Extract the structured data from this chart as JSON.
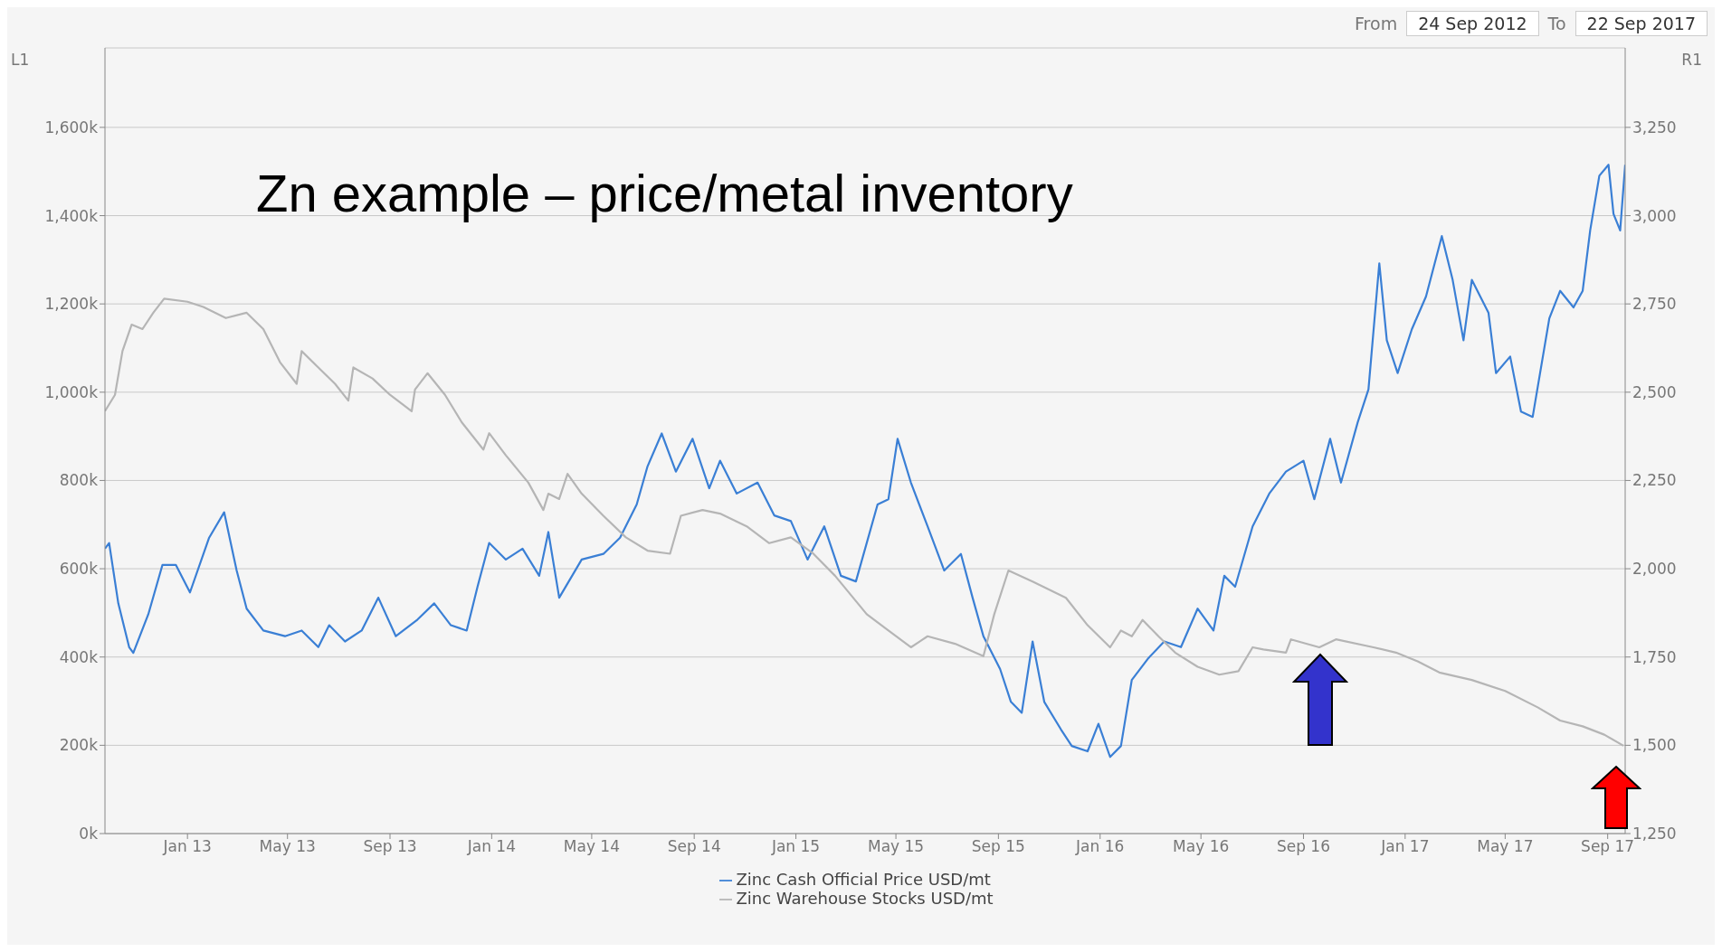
{
  "chart_data": {
    "type": "line",
    "title": "Zn example – price/metal inventory",
    "ylabel": "L1",
    "y2label": "R1",
    "annotations": [
      "From",
      "24 Sep 2012",
      "To",
      "22 Sep 2017"
    ],
    "xlim": [
      "2012-09-24",
      "2017-09-22"
    ],
    "xticks": [
      {
        "value": "2013-01-01",
        "label": "Jan 13"
      },
      {
        "value": "2013-05-01",
        "label": "May 13"
      },
      {
        "value": "2013-09-01",
        "label": "Sep 13"
      },
      {
        "value": "2014-01-01",
        "label": "Jan 14"
      },
      {
        "value": "2014-05-01",
        "label": "May 14"
      },
      {
        "value": "2014-09-01",
        "label": "Sep 14"
      },
      {
        "value": "2015-01-01",
        "label": "Jan 15"
      },
      {
        "value": "2015-05-01",
        "label": "May 15"
      },
      {
        "value": "2015-09-01",
        "label": "Sep 15"
      },
      {
        "value": "2016-01-01",
        "label": "Jan 16"
      },
      {
        "value": "2016-05-01",
        "label": "May 16"
      },
      {
        "value": "2016-09-01",
        "label": "Sep 16"
      },
      {
        "value": "2017-01-01",
        "label": "Jan 17"
      },
      {
        "value": "2017-05-01",
        "label": "May 17"
      },
      {
        "value": "2017-09-01",
        "label": "Sep 17"
      }
    ],
    "ylim": [
      0,
      1780
    ],
    "yticks": [
      {
        "value": 0,
        "label": "0k"
      },
      {
        "value": 200,
        "label": "200k"
      },
      {
        "value": 400,
        "label": "400k"
      },
      {
        "value": 600,
        "label": "600k"
      },
      {
        "value": 800,
        "label": "800k"
      },
      {
        "value": 1000,
        "label": "1,000k"
      },
      {
        "value": 1200,
        "label": "1,200k"
      },
      {
        "value": 1400,
        "label": "1,400k"
      },
      {
        "value": 1600,
        "label": "1,600k"
      }
    ],
    "y2lim": [
      1250,
      3475
    ],
    "y2ticks": [
      {
        "value": 1250,
        "label": "1,250"
      },
      {
        "value": 1500,
        "label": "1,500"
      },
      {
        "value": 1750,
        "label": "1,750"
      },
      {
        "value": 2000,
        "label": "2,000"
      },
      {
        "value": 2250,
        "label": "2,250"
      },
      {
        "value": 2500,
        "label": "2,500"
      },
      {
        "value": 2750,
        "label": "2,750"
      },
      {
        "value": 3000,
        "label": "3,000"
      },
      {
        "value": 3250,
        "label": "3,250"
      }
    ],
    "grid": "y",
    "legend": "bottom",
    "series": [
      {
        "name": "Zinc Cash Official Price USD/mt",
        "color": "#3a7fd5",
        "axis": "y2",
        "x": [
          "2012-09-24",
          "2012-09-29",
          "2012-10-10",
          "2012-10-23",
          "2012-10-28",
          "2012-11-15",
          "2012-12-02",
          "2012-12-18",
          "2013-01-04",
          "2013-01-27",
          "2013-02-14",
          "2013-03-01",
          "2013-03-13",
          "2013-04-02",
          "2013-04-28",
          "2013-05-18",
          "2013-06-07",
          "2013-06-20",
          "2013-07-09",
          "2013-07-29",
          "2013-08-18",
          "2013-09-08",
          "2013-10-04",
          "2013-10-24",
          "2013-11-13",
          "2013-12-02",
          "2013-12-15",
          "2013-12-29",
          "2014-01-18",
          "2014-02-07",
          "2014-02-27",
          "2014-03-10",
          "2014-03-23",
          "2014-04-19",
          "2014-05-15",
          "2014-06-04",
          "2014-06-24",
          "2014-07-07",
          "2014-07-24",
          "2014-08-10",
          "2014-08-30",
          "2014-09-19",
          "2014-10-02",
          "2014-10-22",
          "2014-11-16",
          "2014-12-06",
          "2014-12-26",
          "2015-01-15",
          "2015-02-04",
          "2015-02-24",
          "2015-03-14",
          "2015-04-09",
          "2015-04-22",
          "2015-05-03",
          "2015-05-19",
          "2015-06-08",
          "2015-06-28",
          "2015-07-18",
          "2015-08-01",
          "2015-08-14",
          "2015-09-03",
          "2015-09-16",
          "2015-09-29",
          "2015-10-12",
          "2015-10-26",
          "2015-11-15",
          "2015-11-28",
          "2015-12-17",
          "2015-12-30",
          "2016-01-13",
          "2016-01-26",
          "2016-02-08",
          "2016-02-28",
          "2016-03-18",
          "2016-04-07",
          "2016-04-27",
          "2016-05-16",
          "2016-05-29",
          "2016-06-11",
          "2016-07-02",
          "2016-07-22",
          "2016-08-11",
          "2016-09-01",
          "2016-09-14",
          "2016-10-03",
          "2016-10-16",
          "2016-11-05",
          "2016-11-18",
          "2016-12-01",
          "2016-12-10",
          "2016-12-23",
          "2017-01-09",
          "2017-01-26",
          "2017-02-14",
          "2017-02-27",
          "2017-03-12",
          "2017-03-22",
          "2017-04-11",
          "2017-04-20",
          "2017-05-07",
          "2017-05-20",
          "2017-06-03",
          "2017-06-23",
          "2017-07-06",
          "2017-07-22",
          "2017-08-02",
          "2017-08-11",
          "2017-08-22",
          "2017-09-02",
          "2017-09-08",
          "2017-09-16",
          "2017-09-22"
        ],
        "values": [
          2057,
          2073,
          1902,
          1778,
          1762,
          1871,
          2011,
          2011,
          1933,
          2088,
          2160,
          1995,
          1887,
          1825,
          1809,
          1825,
          1778,
          1840,
          1794,
          1825,
          1918,
          1809,
          1856,
          1902,
          1840,
          1825,
          1949,
          2073,
          2026,
          2057,
          1980,
          2104,
          1918,
          2026,
          2042,
          2088,
          2182,
          2290,
          2383,
          2275,
          2368,
          2228,
          2306,
          2213,
          2244,
          2151,
          2135,
          2026,
          2120,
          1980,
          1964,
          2182,
          2197,
          2368,
          2244,
          2120,
          1995,
          2042,
          1918,
          1809,
          1716,
          1623,
          1592,
          1794,
          1623,
          1545,
          1498,
          1483,
          1561,
          1467,
          1498,
          1685,
          1747,
          1794,
          1778,
          1887,
          1825,
          1980,
          1949,
          2120,
          2213,
          2275,
          2306,
          2197,
          2368,
          2244,
          2414,
          2508,
          2865,
          2647,
          2554,
          2678,
          2771,
          2942,
          2818,
          2647,
          2818,
          2725,
          2554,
          2601,
          2445,
          2430,
          2709,
          2787,
          2740,
          2787,
          2958,
          3113,
          3144,
          3005,
          2958,
          3144
        ]
      },
      {
        "name": "Zinc Warehouse Stocks USD/mt",
        "color": "#b5b5b5",
        "axis": "y",
        "x": [
          "2012-09-24",
          "2012-10-06",
          "2012-10-15",
          "2012-10-26",
          "2012-11-08",
          "2012-11-21",
          "2012-12-04",
          "2013-01-01",
          "2013-01-20",
          "2013-02-16",
          "2013-03-13",
          "2013-04-02",
          "2013-04-22",
          "2013-05-12",
          "2013-05-18",
          "2013-06-07",
          "2013-06-27",
          "2013-07-13",
          "2013-07-19",
          "2013-08-11",
          "2013-09-01",
          "2013-09-27",
          "2013-10-01",
          "2013-10-16",
          "2013-11-06",
          "2013-11-26",
          "2013-12-22",
          "2013-12-29",
          "2014-01-18",
          "2014-02-14",
          "2014-03-04",
          "2014-03-10",
          "2014-03-23",
          "2014-04-02",
          "2014-04-19",
          "2014-05-15",
          "2014-06-11",
          "2014-07-07",
          "2014-08-03",
          "2014-08-16",
          "2014-09-11",
          "2014-10-02",
          "2014-11-03",
          "2014-11-30",
          "2014-12-26",
          "2015-01-22",
          "2015-02-17",
          "2015-03-27",
          "2015-04-22",
          "2015-05-19",
          "2015-06-08",
          "2015-07-11",
          "2015-08-14",
          "2015-08-27",
          "2015-09-13",
          "2015-10-12",
          "2015-11-21",
          "2015-12-17",
          "2016-01-13",
          "2016-01-26",
          "2016-02-08",
          "2016-02-21",
          "2016-03-11",
          "2016-03-31",
          "2016-04-27",
          "2016-05-23",
          "2016-06-15",
          "2016-07-02",
          "2016-07-15",
          "2016-08-11",
          "2016-08-17",
          "2016-09-20",
          "2016-10-10",
          "2016-11-24",
          "2016-12-21",
          "2017-01-16",
          "2017-02-11",
          "2017-03-22",
          "2017-05-01",
          "2017-06-09",
          "2017-07-06",
          "2017-08-02",
          "2017-08-28",
          "2017-09-20"
        ],
        "values": [
          957,
          994,
          1093,
          1153,
          1143,
          1180,
          1212,
          1205,
          1193,
          1168,
          1180,
          1143,
          1068,
          1019,
          1093,
          1056,
          1019,
          981,
          1056,
          1031,
          994,
          957,
          1006,
          1043,
          994,
          932,
          870,
          907,
          857,
          795,
          733,
          770,
          758,
          815,
          770,
          720,
          671,
          641,
          634,
          720,
          733,
          725,
          696,
          658,
          671,
          634,
          584,
          497,
          460,
          422,
          447,
          430,
          402,
          497,
          596,
          571,
          534,
          472,
          422,
          460,
          447,
          484,
          447,
          410,
          378,
          360,
          368,
          422,
          417,
          410,
          440,
          422,
          440,
          422,
          410,
          390,
          365,
          348,
          323,
          286,
          256,
          243,
          224,
          199
        ]
      }
    ]
  }
}
